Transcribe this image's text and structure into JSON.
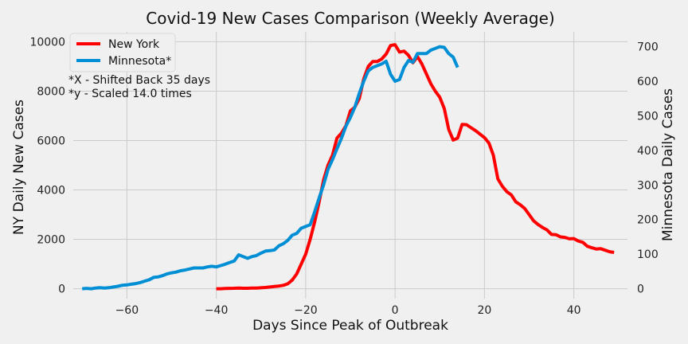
{
  "chart_data": {
    "type": "line",
    "title": "Covid-19 New Cases Comparison (Weekly Average)",
    "xlabel": "Days Since Peak of Outbreak",
    "ylabel_left": "NY Daily New Cases",
    "ylabel_right": "Minnesota Daily Cases",
    "xlim": [
      -72,
      52
    ],
    "ylim_left": [
      -400,
      10400
    ],
    "ylim_right": [
      -28.6,
      742.9
    ],
    "x_ticks": [
      -60,
      -40,
      -20,
      0,
      20,
      40
    ],
    "x_tick_labels": [
      "−60",
      "−40",
      "−20",
      "0",
      "20",
      "40"
    ],
    "y_left_ticks": [
      0,
      2000,
      4000,
      6000,
      8000,
      10000
    ],
    "y_left_tick_labels": [
      "0",
      "2000",
      "4000",
      "6000",
      "8000",
      "10000"
    ],
    "y_right_ticks": [
      0,
      100,
      200,
      300,
      400,
      500,
      600,
      700
    ],
    "y_right_tick_labels": [
      "0",
      "100",
      "200",
      "300",
      "400",
      "500",
      "600",
      "700"
    ],
    "grid": true,
    "legend_position": "top-left",
    "annotations": [
      "*X - Shifted Back 35 days",
      "*y - Scaled 14.0 times"
    ],
    "series": [
      {
        "name": "New York",
        "color": "#ff0000",
        "axis": "left",
        "x": [
          -40,
          -39,
          -38,
          -37,
          -36,
          -35,
          -34,
          -33,
          -32,
          -31,
          -30,
          -29,
          -28,
          -27,
          -26,
          -25,
          -24,
          -23,
          -22,
          -21,
          -20,
          -19,
          -18,
          -17,
          -16,
          -15,
          -14,
          -13,
          -12,
          -11,
          -10,
          -9,
          -8,
          -7,
          -6,
          -5,
          -4,
          -3,
          -2,
          -1,
          0,
          1,
          2,
          3,
          4,
          5,
          6,
          7,
          8,
          9,
          10,
          11,
          12,
          13,
          14,
          15,
          16,
          17,
          18,
          19,
          20,
          21,
          22,
          23,
          24,
          25,
          26,
          27,
          28,
          29,
          30,
          31,
          32,
          33,
          34,
          35,
          36,
          37,
          38,
          39,
          40,
          41,
          42,
          43,
          44,
          45,
          46,
          47,
          48,
          49
        ],
        "y": [
          0,
          0,
          10,
          15,
          20,
          30,
          20,
          20,
          25,
          30,
          40,
          50,
          70,
          90,
          110,
          140,
          200,
          350,
          600,
          1000,
          1400,
          2000,
          2700,
          3500,
          4400,
          5000,
          5400,
          6100,
          6300,
          6600,
          7200,
          7350,
          7700,
          8500,
          9000,
          9200,
          9200,
          9300,
          9500,
          9850,
          9880,
          9580,
          9620,
          9450,
          9150,
          9400,
          9100,
          8700,
          8300,
          8000,
          7750,
          7300,
          6450,
          6020,
          6100,
          6650,
          6640,
          6520,
          6400,
          6260,
          6120,
          5900,
          5400,
          4450,
          4150,
          3930,
          3800,
          3520,
          3400,
          3250,
          3000,
          2750,
          2600,
          2480,
          2380,
          2200,
          2190,
          2100,
          2080,
          2020,
          2030,
          1930,
          1880,
          1720,
          1660,
          1610,
          1620,
          1560,
          1500,
          1470
        ]
      },
      {
        "name": "Minnesota*",
        "color": "#008fd5",
        "axis": "right",
        "x": [
          -70,
          -69,
          -68,
          -67,
          -66,
          -65,
          -64,
          -63,
          -62,
          -61,
          -60,
          -59,
          -58,
          -57,
          -56,
          -55,
          -54,
          -53,
          -52,
          -51,
          -50,
          -49,
          -48,
          -47,
          -46,
          -45,
          -44,
          -43,
          -42,
          -41,
          -40,
          -39,
          -38,
          -37,
          -36,
          -35,
          -34,
          -33,
          -32,
          -31,
          -30,
          -29,
          -28,
          -27,
          -26,
          -25,
          -24,
          -23,
          -22,
          -21,
          -20,
          -19,
          -18,
          -17,
          -16,
          -15,
          -14,
          -13,
          -12,
          -11,
          -10,
          -9,
          -8,
          -7,
          -6,
          -5,
          -4,
          -3,
          -2,
          -1,
          0,
          1,
          2,
          3,
          4,
          5,
          6,
          7,
          8,
          9,
          10,
          11,
          12,
          13,
          14
        ],
        "y": [
          0,
          1,
          0,
          2,
          3,
          2,
          3,
          5,
          7,
          10,
          11,
          13,
          15,
          18,
          22,
          26,
          33,
          34,
          38,
          43,
          46,
          48,
          52,
          54,
          57,
          60,
          60,
          60,
          63,
          65,
          63,
          67,
          71,
          76,
          80,
          98,
          93,
          88,
          93,
          96,
          103,
          109,
          110,
          112,
          124,
          130,
          140,
          155,
          160,
          175,
          180,
          185,
          222,
          262,
          300,
          345,
          373,
          405,
          435,
          470,
          495,
          525,
          565,
          600,
          630,
          640,
          645,
          650,
          658,
          620,
          600,
          605,
          640,
          660,
          655,
          680,
          680,
          680,
          690,
          695,
          700,
          698,
          680,
          670,
          640
        ]
      }
    ]
  },
  "legend": [
    {
      "label": "New York",
      "color": "#ff0000"
    },
    {
      "label": "Minnesota*",
      "color": "#008fd5"
    }
  ]
}
